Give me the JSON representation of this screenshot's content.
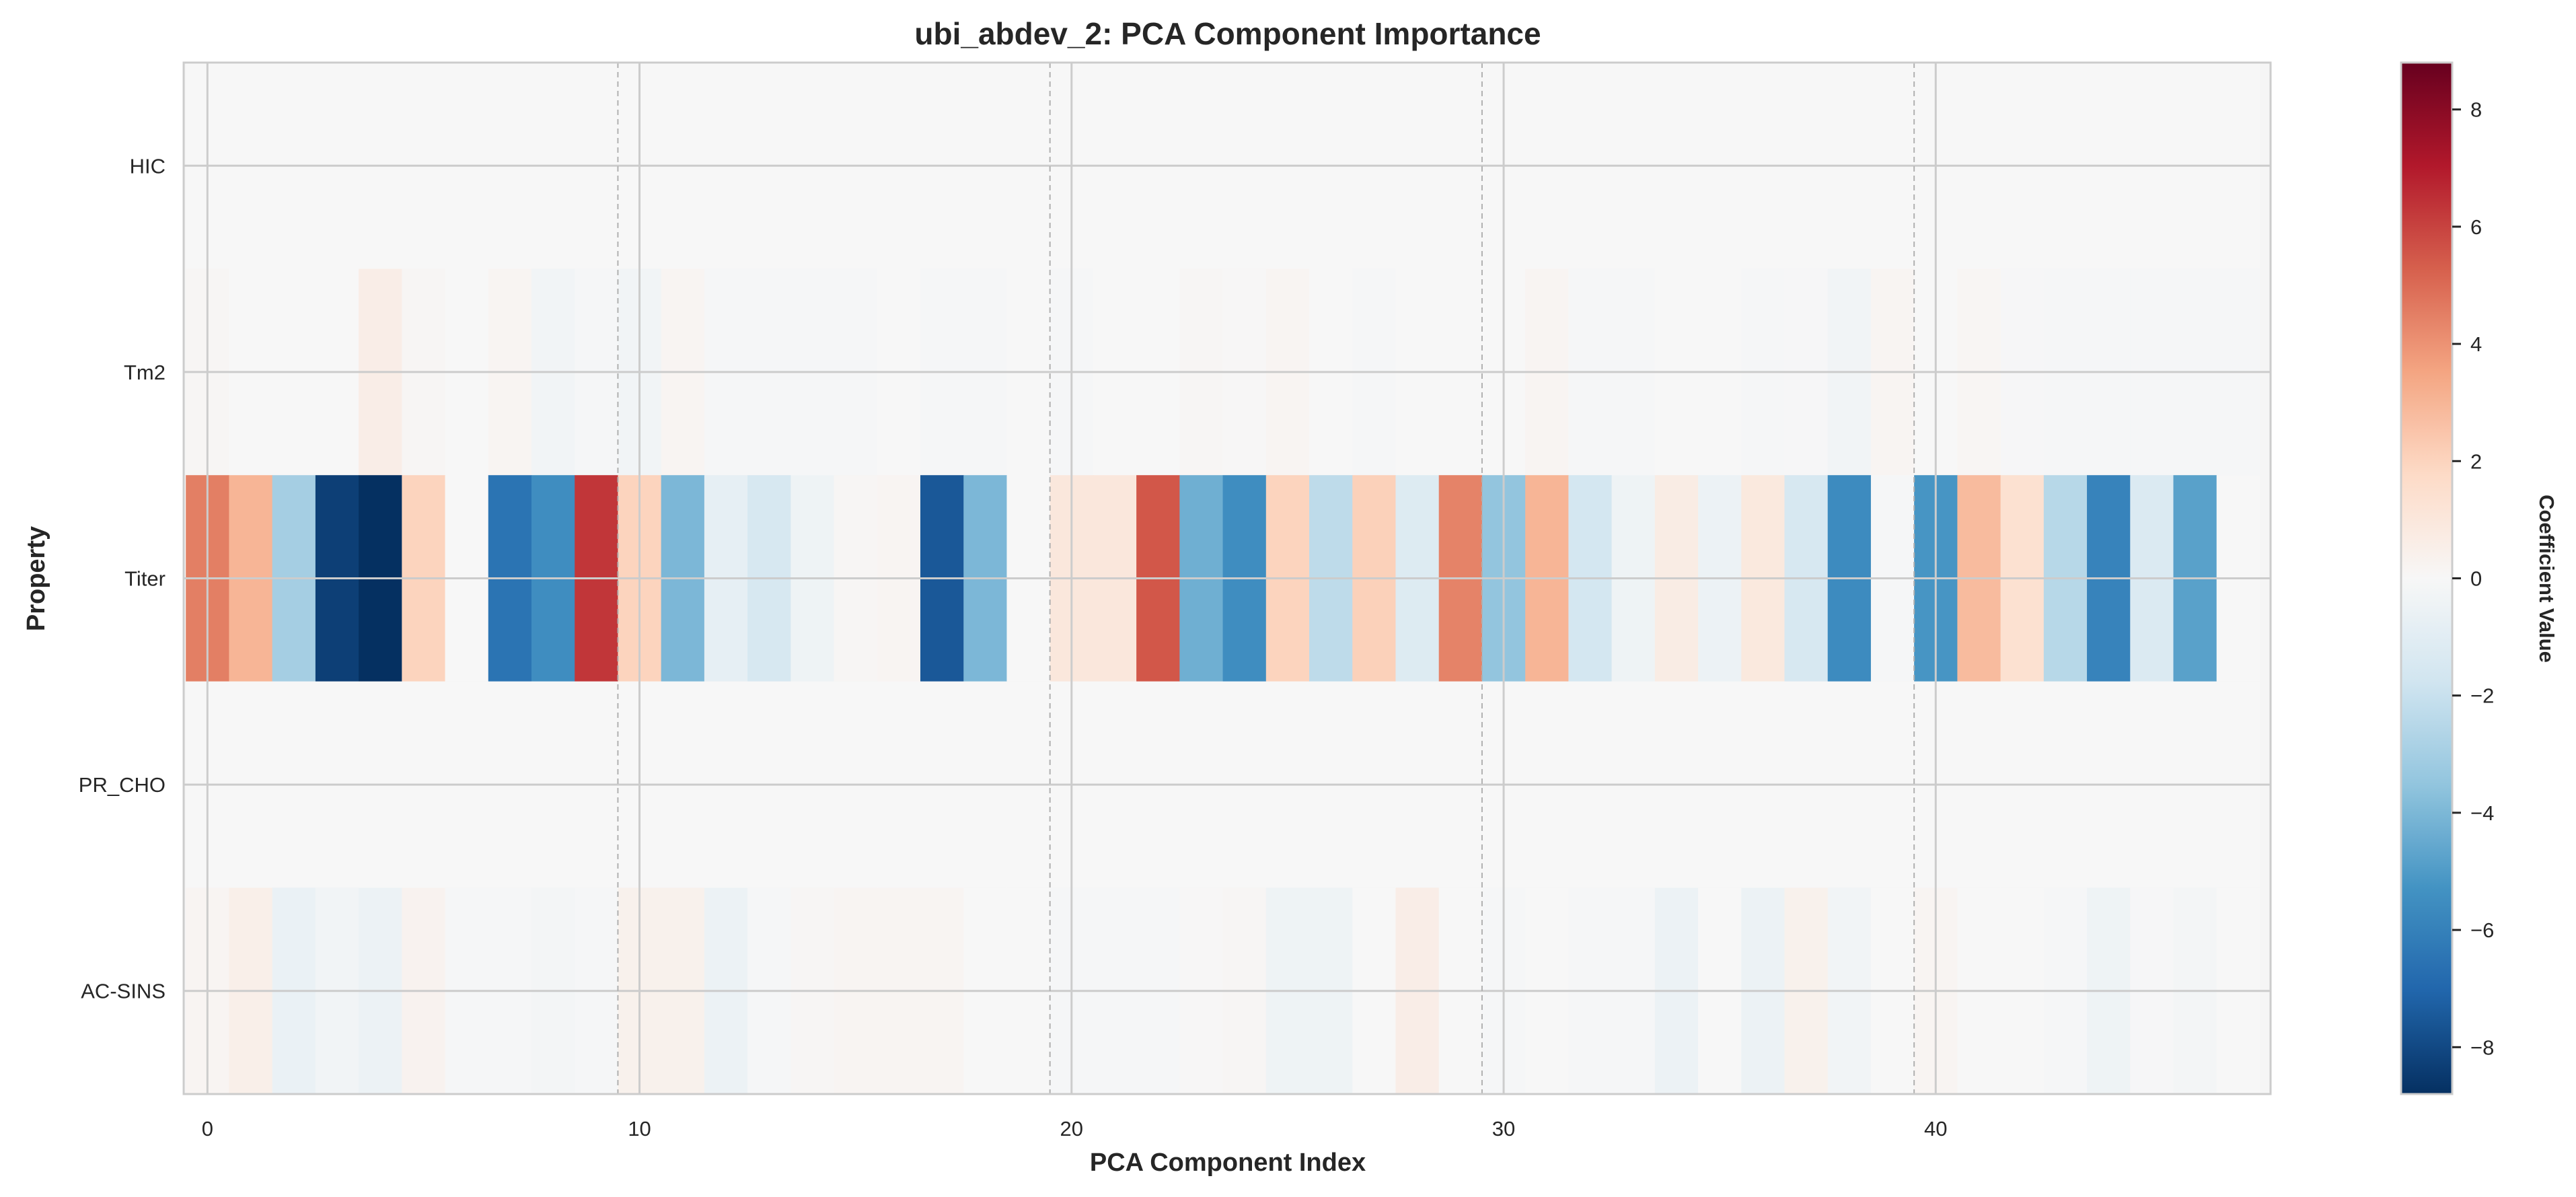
{
  "chart_data": {
    "type": "heatmap",
    "title": "ubi_abdev_2: PCA Component Importance",
    "xlabel": "PCA Component Index",
    "ylabel": "Property",
    "colorbar_label": "Coefficient Value",
    "colormap": "RdBu_r",
    "vlim": [
      -8.8,
      8.8
    ],
    "xlim": [
      -0.55,
      47.75
    ],
    "x_ticks": [
      0,
      10,
      20,
      30,
      40
    ],
    "x_tick_labels": [
      "0",
      "10",
      "20",
      "30",
      "40"
    ],
    "dashed_separators": [
      9.5,
      19.5,
      29.5,
      39.5
    ],
    "colorbar_ticks": [
      8,
      6,
      4,
      2,
      0,
      -2,
      -4,
      -6,
      -8
    ],
    "colorbar_tick_labels": [
      "8",
      "6",
      "4",
      "2",
      "0",
      "−2",
      "−4",
      "−6",
      "−8"
    ],
    "grid": true,
    "rows": [
      "HIC",
      "Tm2",
      "Titer",
      "PR_CHO",
      "AC-SINS"
    ],
    "columns": [
      0,
      1,
      2,
      3,
      4,
      5,
      6,
      7,
      8,
      9,
      10,
      11,
      12,
      13,
      14,
      15,
      16,
      17,
      18,
      19,
      20,
      21,
      22,
      23,
      24,
      25,
      26,
      27,
      28,
      29,
      30,
      31,
      32,
      33,
      34,
      35,
      36,
      37,
      38,
      39,
      40,
      41,
      42,
      43,
      44,
      45,
      46,
      47
    ],
    "values": [
      [
        0,
        0,
        0,
        0,
        0,
        0,
        0,
        0,
        0,
        0,
        0,
        0,
        0,
        0,
        0,
        0,
        0,
        0,
        0,
        0,
        0,
        0,
        0,
        0,
        0,
        0,
        0,
        0,
        0,
        0,
        0,
        0,
        0,
        0,
        0,
        0,
        0,
        0,
        0,
        0,
        0,
        0,
        0,
        0,
        0,
        0,
        0,
        0
      ],
      [
        0.1,
        0,
        0,
        0,
        0.6,
        0.1,
        0,
        0.2,
        -0.3,
        -0.1,
        -0.3,
        0.2,
        -0.1,
        -0.1,
        -0.1,
        -0.1,
        0,
        -0.1,
        -0.1,
        0,
        -0.1,
        0,
        0,
        0.1,
        0.05,
        0.2,
        0,
        -0.1,
        0,
        0,
        0,
        0.2,
        -0.1,
        -0.1,
        0,
        0,
        -0.1,
        -0.05,
        -0.3,
        0.2,
        0,
        0.15,
        -0.05,
        -0.1,
        -0.1,
        -0.1,
        -0.1,
        -0.1
      ],
      [
        4.5,
        3.0,
        -3.0,
        -8.3,
        -8.8,
        2.0,
        0,
        -6.5,
        -5.5,
        6.3,
        2.0,
        -4.0,
        -0.8,
        -1.5,
        -0.4,
        0.1,
        0.2,
        -7.5,
        -4.0,
        0,
        1.0,
        1.0,
        5.5,
        -4.3,
        -5.5,
        2.0,
        -2.3,
        2.1,
        -1.2,
        4.4,
        -3.5,
        3.0,
        -1.6,
        -0.4,
        0.7,
        -0.5,
        0.9,
        -1.5,
        -5.6,
        -0.1,
        -5.2,
        2.8,
        1.4,
        -2.5,
        -5.9,
        -1.3,
        -4.8,
        0
      ],
      [
        0,
        0,
        0,
        0,
        0,
        0,
        0,
        0,
        0,
        0,
        0,
        0,
        0,
        0,
        0,
        0,
        0,
        0,
        0,
        0,
        0,
        0,
        0,
        0,
        0,
        0,
        0,
        0,
        0,
        0,
        0,
        0,
        0,
        0,
        0,
        0,
        0,
        0,
        0,
        0,
        0,
        0,
        0,
        0,
        0,
        0,
        0,
        0
      ],
      [
        0.2,
        0.5,
        -0.6,
        -0.3,
        -0.5,
        0.3,
        -0.1,
        -0.1,
        -0.2,
        -0.1,
        0.4,
        0.4,
        -0.5,
        -0.1,
        0.1,
        0.2,
        0.2,
        0.2,
        0,
        0,
        -0.1,
        -0.1,
        -0.1,
        0.05,
        0.1,
        -0.4,
        -0.4,
        0,
        0.6,
        0,
        -0.1,
        0,
        -0.1,
        -0.1,
        -0.5,
        0,
        -0.5,
        0.4,
        -0.3,
        0,
        0.2,
        0,
        0,
        -0.1,
        -0.4,
        -0.05,
        -0.2,
        0
      ]
    ]
  }
}
